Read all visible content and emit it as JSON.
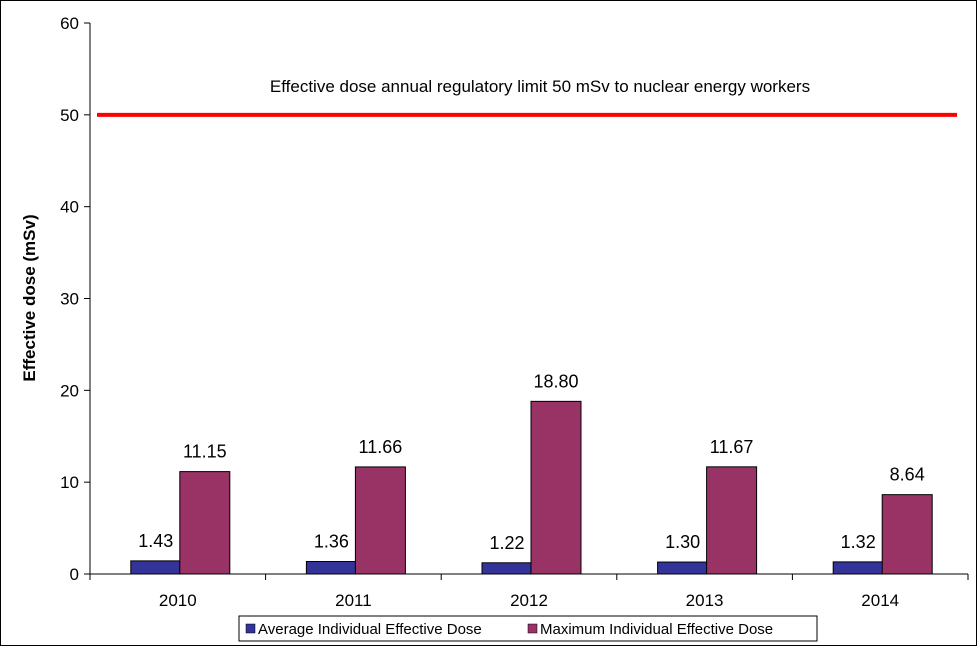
{
  "chart_data": {
    "type": "bar",
    "title": "",
    "xlabel": "",
    "ylabel": "Effective dose (mSv)",
    "categories": [
      "2010",
      "2011",
      "2012",
      "2013",
      "2014"
    ],
    "yticks": [
      "0",
      "10",
      "20",
      "30",
      "40",
      "50",
      "60"
    ],
    "ylim": [
      0,
      60
    ],
    "grid": false,
    "legend_position": "bottom",
    "series": [
      {
        "name": "Average Individual Effective Dose",
        "color": "#333399",
        "values": [
          1.43,
          1.36,
          1.22,
          1.3,
          1.32
        ],
        "labels": [
          "1.43",
          "1.36",
          "1.22",
          "1.30",
          "1.32"
        ]
      },
      {
        "name": "Maximum Individual Effective Dose",
        "color": "#993366",
        "values": [
          11.15,
          11.66,
          18.8,
          11.67,
          8.64
        ],
        "labels": [
          "11.15",
          "11.66",
          "18.80",
          "11.67",
          "8.64"
        ]
      }
    ],
    "reference_line": {
      "value": 50,
      "color": "#ff0000",
      "label": "Effective dose annual regulatory limit 50 mSv to nuclear energy workers"
    }
  }
}
